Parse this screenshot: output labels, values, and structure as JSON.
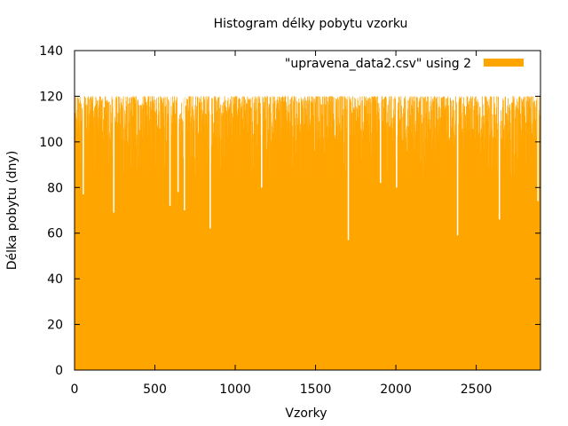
{
  "chart_data": {
    "type": "bar",
    "title": "Histogram délky pobytu vzorku",
    "xlabel": "Vzorky",
    "ylabel": "Délka pobytu (dny)",
    "xlim": [
      0,
      2900
    ],
    "ylim": [
      0,
      140
    ],
    "x_ticks": [
      0,
      500,
      1000,
      1500,
      2000,
      2500
    ],
    "x_tick_labels": [
      "0",
      "500",
      "1000",
      "1500",
      "2000",
      "2500"
    ],
    "y_ticks": [
      0,
      20,
      40,
      60,
      80,
      100,
      120,
      140
    ],
    "y_tick_labels": [
      "0",
      "20",
      "40",
      "60",
      "80",
      "100",
      "120",
      "140"
    ],
    "grid": false,
    "legend_position": "top-right",
    "series": [
      {
        "name": "\"upravena_data2.csv\" using 2",
        "color": "#ffa500",
        "sample_count": 2900,
        "typical_range": [
          85,
          120
        ],
        "dips": [
          {
            "x": 50,
            "value": 77
          },
          {
            "x": 240,
            "value": 69
          },
          {
            "x": 590,
            "value": 72
          },
          {
            "x": 640,
            "value": 78
          },
          {
            "x": 680,
            "value": 70
          },
          {
            "x": 840,
            "value": 62
          },
          {
            "x": 1160,
            "value": 80
          },
          {
            "x": 1700,
            "value": 57
          },
          {
            "x": 1900,
            "value": 82
          },
          {
            "x": 2000,
            "value": 80
          },
          {
            "x": 2380,
            "value": 59
          },
          {
            "x": 2640,
            "value": 66
          },
          {
            "x": 2880,
            "value": 74
          }
        ]
      }
    ]
  }
}
